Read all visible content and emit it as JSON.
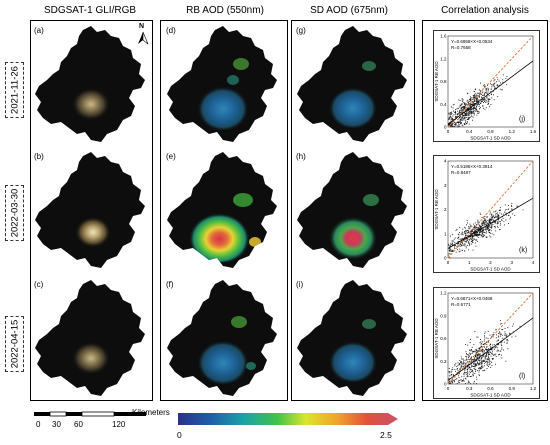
{
  "headers": {
    "col1": "SDGSAT-1 GLI/RGB",
    "col2": "RB AOD  (550nm)",
    "col3": "SD AOD  (675nm)",
    "col4": "Correlation analysis"
  },
  "dates": [
    "2021-11-26",
    "2022-03-30",
    "2022-04-15"
  ],
  "panel_labels": {
    "a": "(a)",
    "b": "(b)",
    "c": "(c)",
    "d": "(d)",
    "e": "(e)",
    "f": "(f)",
    "g": "(g)",
    "h": "(h)",
    "i": "(i)",
    "j": "(j)",
    "k": "(k)",
    "l": "(l)"
  },
  "north_label": "N",
  "scalebar": {
    "unit": "Kilometers",
    "ticks": [
      "0",
      "30",
      "60",
      "120"
    ]
  },
  "colorbar": {
    "min_label": "0",
    "max_label": "2.5"
  },
  "colors": {
    "map_dark": "#0d0d0d",
    "fit_line": "#000000",
    "one_to_one": "#e8702a"
  },
  "chart_data": [
    {
      "type": "scatter",
      "panel": "(j)",
      "xlabel": "SDGSAT-1 SD AOD",
      "ylabel": "SDGSAT-1 RB AOD",
      "xlim": [
        0,
        1.8
      ],
      "ylim": [
        0,
        1.8
      ],
      "xticks": [
        "0",
        "0.4",
        "0.8",
        "1.2",
        "1.6"
      ],
      "yticks": [
        "0",
        "0.4",
        "0.8",
        "1.2",
        "1.6"
      ],
      "equation": "Y=0.6958×X+0.0534",
      "r_label": "R=0.7658",
      "slope": 0.6958,
      "intercept": 0.0534,
      "n_points": 620,
      "x_center": 0.45,
      "x_spread": 0.28,
      "noise": 0.13
    },
    {
      "type": "scatter",
      "panel": "(k)",
      "xlabel": "SDGSAT-1 SD AOD",
      "ylabel": "SDGSAT-1 RB AOD",
      "xlim": [
        0,
        4
      ],
      "ylim": [
        0,
        4
      ],
      "xticks": [
        "0",
        "1",
        "2",
        "3",
        "4"
      ],
      "yticks": [
        "0",
        "1",
        "2",
        "3",
        "4"
      ],
      "equation": "Y=0.5186×X+0.3914",
      "r_label": "R=0.8487",
      "slope": 0.5186,
      "intercept": 0.3914,
      "n_points": 620,
      "x_center": 1.4,
      "x_spread": 0.7,
      "noise": 0.22
    },
    {
      "type": "scatter",
      "panel": "(l)",
      "xlabel": "SDGSAT-1 SD AOD",
      "ylabel": "SDGSAT-1 RB AOD",
      "xlim": [
        0,
        1.2
      ],
      "ylim": [
        0,
        1.2
      ],
      "xticks": [
        "0",
        "0.3",
        "0.6",
        "0.9",
        "1.2"
      ],
      "yticks": [
        "0",
        "0.3",
        "0.6",
        "0.9",
        "1.2"
      ],
      "equation": "Y=0.6871×X+0.0468",
      "r_label": "R=0.6771",
      "slope": 0.6871,
      "intercept": 0.0468,
      "n_points": 620,
      "x_center": 0.42,
      "x_spread": 0.22,
      "noise": 0.11
    }
  ]
}
